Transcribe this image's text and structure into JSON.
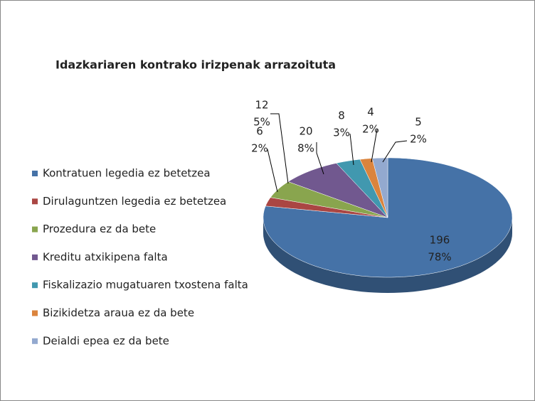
{
  "chart_data": {
    "type": "pie3d",
    "title": "Idazkariaren kontrako irizpenak arrazoituta",
    "categories": [
      "Kontratuen legedia ez betetzea",
      "Dirulaguntzen legedia ez betetzea",
      "Prozedura ez da bete",
      "Kreditu atxikipena falta",
      "Fiskalizazio mugatuaren txostena falta",
      "Bizikidetza araua ez da bete",
      "Deialdi epea ez da bete"
    ],
    "values": [
      196,
      6,
      12,
      20,
      8,
      4,
      5
    ],
    "percent_labels": [
      "78%",
      "2%",
      "5%",
      "8%",
      "3%",
      "2%",
      "2%"
    ],
    "colors": [
      "#4572a7",
      "#aa4643",
      "#89a54e",
      "#71588f",
      "#4198af",
      "#db843d",
      "#93a9cf"
    ],
    "legend": "left"
  }
}
